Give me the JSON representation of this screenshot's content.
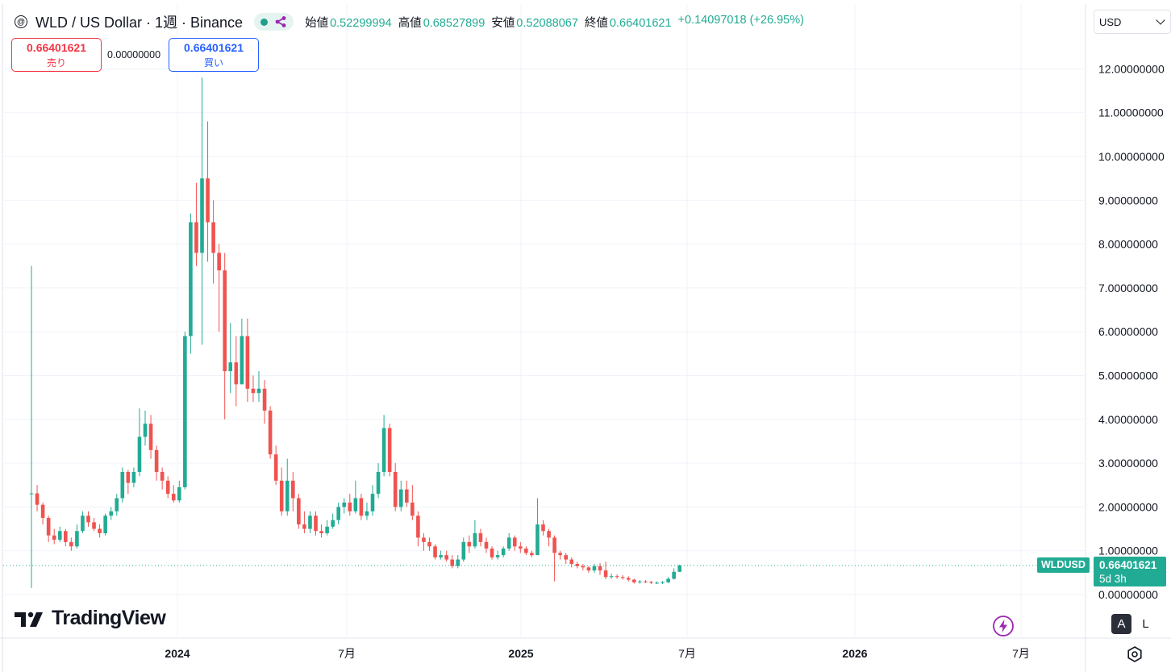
{
  "legend": {
    "symbol_icon": "wld-coin-icon",
    "title": "WLD / US Dollar · 1週 · Binance",
    "open_label": "始値",
    "open": "0.52299994",
    "high_label": "高値",
    "high": "0.68527899",
    "low_label": "安値",
    "low": "0.52088067",
    "close_label": "終値",
    "close": "0.66401621",
    "change": "+0.14097018 (+26.95%)"
  },
  "trade": {
    "sell_price": "0.66401621",
    "sell_label": "売り",
    "spread": "0.00000000",
    "buy_price": "0.66401621",
    "buy_label": "買い"
  },
  "currency": "USD",
  "branding": {
    "wordmark": "TradingView",
    "logo_icon": "tradingview-logo-icon"
  },
  "scale_buttons": {
    "auto": "A",
    "log": "L"
  },
  "time_axis_settings_icon": "gear-icon",
  "lightning_icon": "lightning-icon",
  "price_tag": {
    "symbol": "WLDUSD",
    "price": "0.66401621",
    "countdown": "5d 3h"
  },
  "colors": {
    "up": "#22ab94",
    "down": "#ef5350",
    "accent": "#2962ff",
    "lightning": "#9c27b0"
  },
  "chart_data": {
    "type": "candlestick",
    "interval": "1W",
    "y_ticks": [
      "0.00000000",
      "1.00000000",
      "2.00000000",
      "3.00000000",
      "4.00000000",
      "5.00000000",
      "6.00000000",
      "7.00000000",
      "8.00000000",
      "9.00000000",
      "10.00000000",
      "11.00000000",
      "12.00000000"
    ],
    "ylim": [
      -0.65,
      13.0
    ],
    "x_ticks": [
      "2024",
      "7月",
      "2025",
      "7月",
      "2026",
      "7月"
    ],
    "last_price": 0.66401621,
    "candles": [
      [
        2.31,
        2.31,
        7.5,
        0.15
      ],
      [
        2.31,
        2.05,
        2.5,
        1.9
      ],
      [
        2.05,
        1.75,
        2.1,
        1.6
      ],
      [
        1.75,
        1.35,
        1.8,
        1.2
      ],
      [
        1.35,
        1.25,
        1.5,
        1.15
      ],
      [
        1.25,
        1.45,
        1.55,
        1.2
      ],
      [
        1.45,
        1.2,
        1.5,
        1.1
      ],
      [
        1.2,
        1.1,
        1.3,
        1.0
      ],
      [
        1.1,
        1.45,
        1.6,
        1.05
      ],
      [
        1.45,
        1.8,
        1.9,
        1.4
      ],
      [
        1.8,
        1.65,
        1.9,
        1.55
      ],
      [
        1.65,
        1.5,
        1.75,
        1.45
      ],
      [
        1.5,
        1.4,
        1.6,
        1.3
      ],
      [
        1.4,
        1.8,
        1.85,
        1.35
      ],
      [
        1.8,
        1.9,
        2.0,
        1.7
      ],
      [
        1.9,
        2.2,
        2.3,
        1.8
      ],
      [
        2.2,
        2.8,
        2.9,
        2.1
      ],
      [
        2.8,
        2.55,
        2.85,
        2.3
      ],
      [
        2.55,
        2.8,
        2.9,
        2.45
      ],
      [
        2.8,
        3.6,
        4.25,
        2.7
      ],
      [
        3.6,
        3.9,
        4.2,
        3.4
      ],
      [
        3.9,
        3.3,
        4.1,
        3.1
      ],
      [
        3.3,
        2.8,
        3.4,
        2.6
      ],
      [
        2.8,
        2.6,
        2.9,
        2.4
      ],
      [
        2.6,
        2.3,
        2.7,
        2.2
      ],
      [
        2.3,
        2.15,
        2.5,
        2.1
      ],
      [
        2.15,
        2.45,
        2.6,
        2.1
      ],
      [
        2.45,
        5.9,
        6.0,
        2.4
      ],
      [
        5.9,
        8.5,
        8.7,
        5.5
      ],
      [
        8.5,
        7.8,
        9.4,
        7.5
      ],
      [
        7.8,
        9.5,
        11.8,
        5.7
      ],
      [
        9.5,
        8.5,
        10.8,
        7.6
      ],
      [
        8.5,
        7.8,
        9.0,
        7.1
      ],
      [
        7.8,
        7.4,
        8.0,
        6.0
      ],
      [
        7.4,
        5.1,
        7.8,
        4.0
      ],
      [
        5.1,
        5.3,
        6.2,
        4.6
      ],
      [
        5.3,
        4.8,
        5.9,
        4.3
      ],
      [
        4.8,
        5.9,
        6.3,
        4.8
      ],
      [
        5.9,
        4.7,
        6.3,
        4.4
      ],
      [
        4.7,
        4.6,
        5.0,
        4.4
      ],
      [
        4.6,
        4.7,
        5.1,
        4.4
      ],
      [
        4.7,
        4.2,
        4.9,
        3.9
      ],
      [
        4.2,
        3.2,
        4.3,
        3.1
      ],
      [
        3.2,
        2.6,
        3.4,
        2.5
      ],
      [
        2.6,
        1.9,
        2.9,
        1.8
      ],
      [
        1.9,
        2.6,
        3.1,
        1.8
      ],
      [
        2.6,
        2.2,
        2.8,
        1.9
      ],
      [
        2.2,
        1.6,
        2.3,
        1.5
      ],
      [
        1.6,
        1.5,
        1.9,
        1.4
      ],
      [
        1.5,
        1.8,
        1.9,
        1.4
      ],
      [
        1.8,
        1.45,
        1.9,
        1.35
      ],
      [
        1.45,
        1.4,
        1.6,
        1.3
      ],
      [
        1.4,
        1.55,
        1.7,
        1.35
      ],
      [
        1.55,
        1.7,
        1.85,
        1.5
      ],
      [
        1.7,
        2.0,
        2.1,
        1.6
      ],
      [
        2.0,
        2.1,
        2.2,
        1.85
      ],
      [
        2.1,
        1.9,
        2.3,
        1.8
      ],
      [
        1.9,
        2.2,
        2.6,
        1.85
      ],
      [
        2.2,
        1.8,
        2.3,
        1.7
      ],
      [
        1.8,
        1.9,
        2.1,
        1.7
      ],
      [
        1.9,
        2.3,
        2.5,
        1.8
      ],
      [
        2.3,
        2.8,
        3.0,
        2.2
      ],
      [
        2.8,
        3.8,
        4.1,
        2.7
      ],
      [
        3.8,
        2.8,
        3.9,
        2.7
      ],
      [
        2.8,
        2.0,
        3.0,
        1.9
      ],
      [
        2.0,
        2.4,
        2.6,
        1.9
      ],
      [
        2.4,
        2.1,
        2.6,
        2.0
      ],
      [
        2.1,
        1.8,
        2.5,
        1.7
      ],
      [
        1.8,
        1.3,
        1.9,
        1.1
      ],
      [
        1.3,
        1.2,
        1.4,
        1.0
      ],
      [
        1.2,
        1.1,
        1.3,
        1.0
      ],
      [
        1.1,
        0.85,
        1.15,
        0.8
      ],
      [
        0.85,
        0.9,
        1.0,
        0.8
      ],
      [
        0.9,
        0.8,
        1.0,
        0.75
      ],
      [
        0.8,
        0.65,
        0.9,
        0.6
      ],
      [
        0.65,
        0.8,
        0.9,
        0.6
      ],
      [
        0.8,
        1.2,
        1.3,
        0.75
      ],
      [
        1.2,
        1.1,
        1.35,
        0.95
      ],
      [
        1.1,
        1.4,
        1.7,
        1.05
      ],
      [
        1.4,
        1.2,
        1.5,
        1.1
      ],
      [
        1.2,
        1.05,
        1.3,
        0.95
      ],
      [
        1.05,
        0.85,
        1.1,
        0.8
      ],
      [
        0.85,
        0.9,
        1.0,
        0.8
      ],
      [
        0.9,
        1.05,
        1.1,
        0.85
      ],
      [
        1.05,
        1.3,
        1.4,
        1.0
      ],
      [
        1.3,
        1.1,
        1.35,
        1.0
      ],
      [
        1.1,
        1.05,
        1.2,
        0.95
      ],
      [
        1.05,
        0.95,
        1.1,
        0.9
      ],
      [
        0.95,
        0.9,
        1.0,
        0.85
      ],
      [
        0.9,
        1.6,
        2.2,
        0.9
      ],
      [
        1.6,
        1.45,
        1.7,
        1.35
      ],
      [
        1.45,
        1.3,
        1.5,
        1.1
      ],
      [
        1.3,
        0.95,
        1.35,
        0.3
      ],
      [
        0.95,
        0.9,
        1.0,
        0.8
      ],
      [
        0.9,
        0.8,
        0.95,
        0.7
      ],
      [
        0.8,
        0.7,
        0.85,
        0.62
      ],
      [
        0.7,
        0.65,
        0.75,
        0.6
      ],
      [
        0.65,
        0.62,
        0.7,
        0.55
      ],
      [
        0.62,
        0.55,
        0.65,
        0.5
      ],
      [
        0.55,
        0.65,
        0.7,
        0.5
      ],
      [
        0.65,
        0.55,
        0.72,
        0.45
      ],
      [
        0.55,
        0.4,
        0.75,
        0.35
      ],
      [
        0.4,
        0.42,
        0.48,
        0.36
      ],
      [
        0.42,
        0.4,
        0.46,
        0.36
      ],
      [
        0.4,
        0.38,
        0.44,
        0.34
      ],
      [
        0.38,
        0.34,
        0.42,
        0.3
      ],
      [
        0.34,
        0.28,
        0.36,
        0.25
      ],
      [
        0.28,
        0.3,
        0.33,
        0.25
      ],
      [
        0.3,
        0.29,
        0.33,
        0.26
      ],
      [
        0.29,
        0.27,
        0.31,
        0.24
      ],
      [
        0.27,
        0.27,
        0.3,
        0.24
      ],
      [
        0.27,
        0.28,
        0.31,
        0.24
      ],
      [
        0.28,
        0.36,
        0.4,
        0.26
      ],
      [
        0.36,
        0.52,
        0.6,
        0.34
      ],
      [
        0.52,
        0.664,
        0.685,
        0.52
      ]
    ]
  }
}
